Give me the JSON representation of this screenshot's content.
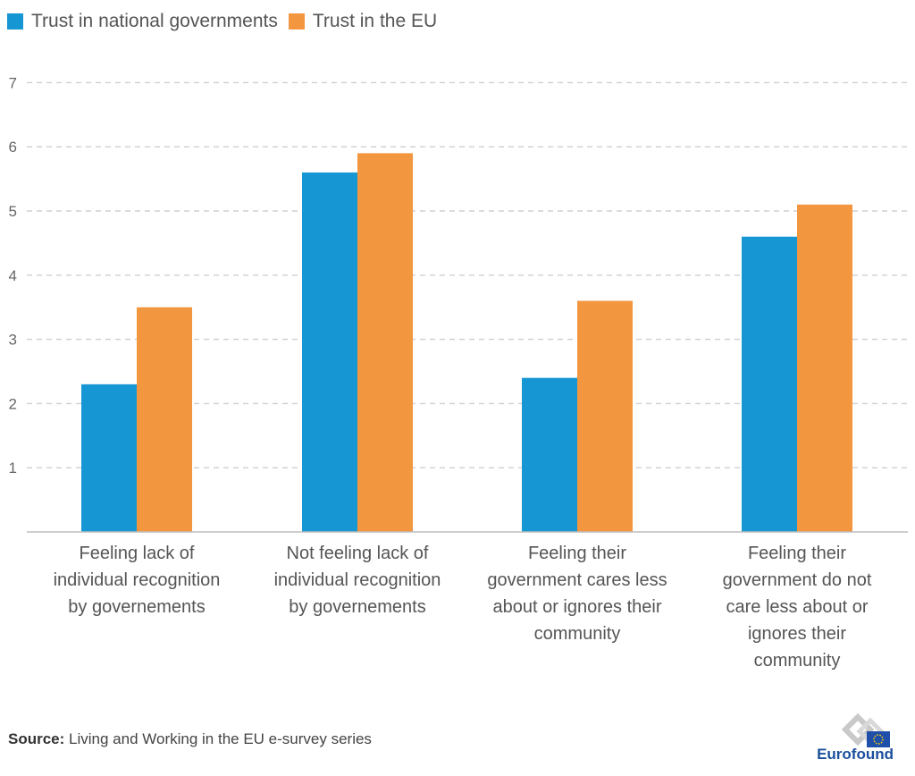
{
  "chart_data": {
    "type": "bar",
    "categories": [
      "Feeling lack of individual recognition by governements",
      "Not feeling lack of individual recognition by governements",
      "Feeling their government cares less about or ignores their community",
      "Feeling their government do not care less about or ignores their community"
    ],
    "category_lines": [
      [
        "Feeling lack of",
        "individual recognition",
        "by governements"
      ],
      [
        "Not feeling lack of",
        "individual recognition",
        "by governements"
      ],
      [
        "Feeling their",
        "government cares less",
        "about or ignores their",
        "community"
      ],
      [
        "Feeling their",
        "government do not",
        "care less about or",
        "ignores their",
        "community"
      ]
    ],
    "series": [
      {
        "name": "Trust in national governments",
        "color": "#1696d2",
        "values": [
          2.3,
          5.6,
          2.4,
          4.6
        ]
      },
      {
        "name": "Trust in the EU",
        "color": "#f39640",
        "values": [
          3.5,
          5.9,
          3.6,
          5.1
        ]
      }
    ],
    "title": "",
    "xlabel": "",
    "ylabel": "",
    "ylim": [
      0,
      7
    ],
    "yticks": [
      1,
      2,
      3,
      4,
      5,
      6,
      7
    ],
    "grid": true,
    "legend_position": "top-left"
  },
  "source": {
    "label": "Source:",
    "text": "Living and Working in the EU e-survey series"
  },
  "logo": {
    "text": "Eurofound"
  }
}
